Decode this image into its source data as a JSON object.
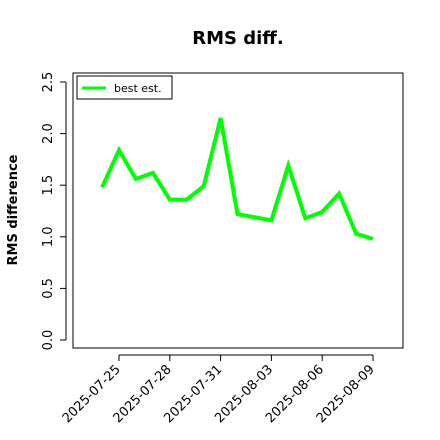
{
  "chart_data": {
    "type": "line",
    "title": "RMS diff.",
    "xlabel": "",
    "ylabel": "RMS difference",
    "ylim": [
      0,
      2.5
    ],
    "yticks": [
      0.0,
      0.5,
      1.0,
      1.5,
      2.0,
      2.5
    ],
    "ytick_labels": [
      "0.0",
      "0.5",
      "1.0",
      "1.5",
      "2.0",
      "2.5"
    ],
    "xtick_labels": [
      "2025-07-25",
      "2025-07-28",
      "2025-07-31",
      "2025-08-03",
      "2025-08-06",
      "2025-08-09"
    ],
    "grid": false,
    "legend_position": "top-left",
    "series": [
      {
        "name": "best est.",
        "color": "#00ff00",
        "x": [
          "2025-07-24",
          "2025-07-25",
          "2025-07-26",
          "2025-07-27",
          "2025-07-28",
          "2025-07-29",
          "2025-07-30",
          "2025-07-31",
          "2025-08-01",
          "2025-08-02",
          "2025-08-03",
          "2025-08-04",
          "2025-08-05",
          "2025-08-06",
          "2025-08-07",
          "2025-08-08",
          "2025-08-09"
        ],
        "values": [
          1.48,
          1.84,
          1.56,
          1.62,
          1.36,
          1.36,
          1.49,
          2.15,
          1.22,
          1.19,
          1.16,
          1.69,
          1.18,
          1.24,
          1.42,
          1.03,
          0.98
        ]
      }
    ]
  }
}
